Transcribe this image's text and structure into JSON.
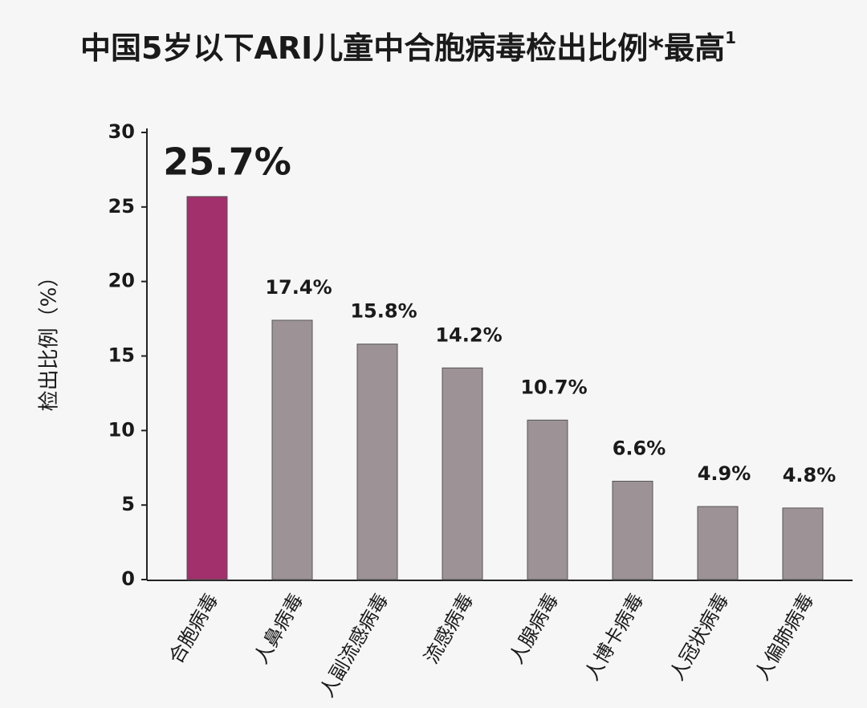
{
  "chart_data": {
    "type": "bar",
    "title": "中国5岁以下ARI儿童中合胞病毒检出比例*最高",
    "title_superscript": "1",
    "y_label": "检出比例（%）",
    "categories": [
      "合胞病毒",
      "人鼻病毒",
      "人副流感病毒",
      "流感病毒",
      "人腺病毒",
      "人博卡病毒",
      "人冠状病毒",
      "人偏肺病毒"
    ],
    "values": [
      25.7,
      17.4,
      15.8,
      14.2,
      10.7,
      6.6,
      4.9,
      4.8
    ],
    "value_labels": [
      "25.7%",
      "17.4%",
      "15.8%",
      "14.2%",
      "10.7%",
      "6.6%",
      "4.9%",
      "4.8%"
    ],
    "colors": [
      "#a1306c",
      "#9d9396",
      "#9d9396",
      "#9d9396",
      "#9d9396",
      "#9d9396",
      "#9d9396",
      "#9d9396"
    ],
    "ylim": [
      0,
      30
    ],
    "yticks": [
      0,
      5,
      10,
      15,
      20,
      25,
      30
    ]
  }
}
